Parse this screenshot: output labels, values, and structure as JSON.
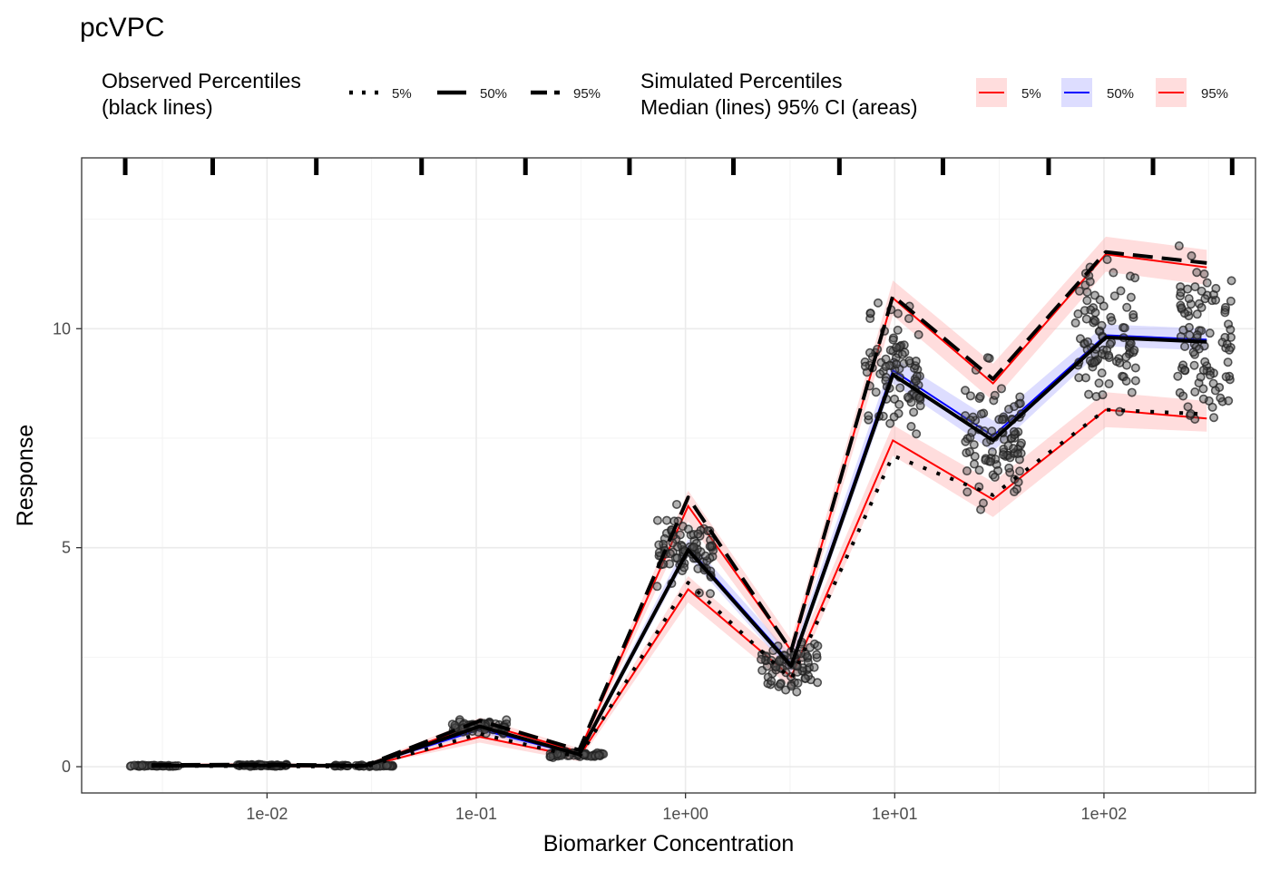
{
  "chart_data": {
    "type": "line",
    "title": "pcVPC",
    "xlabel": "Biomarker Concentration",
    "ylabel": "Response",
    "x_scale": "log10",
    "xlim": [
      0.0013,
      530
    ],
    "ylim": [
      -0.6,
      13.9
    ],
    "grid": true,
    "legend_position": "top",
    "x_ticks": [
      0.01,
      0.1,
      1,
      10,
      100
    ],
    "x_tick_labels": [
      "1e-02",
      "1e-01",
      "1e+00",
      "1e+01",
      "1e+02"
    ],
    "y_ticks": [
      0,
      5,
      10
    ],
    "y_tick_labels": [
      "0",
      "5",
      "10"
    ],
    "bin_edges": [
      0.0021,
      0.0055,
      0.0172,
      0.0548,
      0.1718,
      0.54,
      1.695,
      5.44,
      17.0,
      54.4,
      171.6,
      410
    ],
    "bins_x": [
      0.0028,
      0.0095,
      0.0295,
      0.104,
      0.31,
      1.03,
      3.2,
      9.8,
      29.5,
      102,
      310
    ],
    "legend": {
      "observed_title_line1": "Observed Percentiles",
      "observed_title_line2": "(black lines)",
      "observed_keys": [
        "5%",
        "50%",
        "95%"
      ],
      "simulated_title_line1": "Simulated Percentiles",
      "simulated_title_line2": "Median (lines) 95% CI (areas)",
      "simulated_keys": [
        "5%",
        "50%",
        "95%"
      ]
    },
    "colors": {
      "observed": "#000000",
      "sim_outer_line": "#ff0000",
      "sim_median_line": "#0000ff",
      "sim_outer_band": "#ffb3b3",
      "sim_median_band": "#b3b3ff",
      "points": "#555555"
    },
    "series": [
      {
        "name": "5%",
        "group": "observed",
        "y": [
          0.02,
          0.01,
          0.0,
          0.75,
          0.22,
          4.2,
          2.0,
          7.1,
          6.2,
          8.15,
          8.05
        ]
      },
      {
        "name": "50%",
        "group": "observed",
        "y": [
          0.02,
          0.03,
          0.02,
          0.92,
          0.28,
          4.95,
          2.3,
          8.95,
          7.45,
          9.8,
          9.7
        ]
      },
      {
        "name": "95%",
        "group": "observed",
        "y": [
          0.04,
          0.05,
          0.03,
          1.05,
          0.38,
          6.15,
          2.65,
          10.75,
          8.85,
          11.75,
          11.5
        ]
      },
      {
        "name": "5%",
        "group": "simulated",
        "y": [
          0.02,
          0.01,
          0.0,
          0.68,
          0.22,
          4.05,
          2.05,
          7.45,
          6.1,
          8.15,
          7.95
        ],
        "ci_low": [
          0.0,
          0.0,
          0.0,
          0.55,
          0.12,
          3.75,
          1.8,
          7.1,
          5.7,
          7.75,
          7.65
        ],
        "ci_high": [
          0.05,
          0.05,
          0.05,
          0.8,
          0.3,
          4.35,
          2.3,
          7.8,
          6.5,
          8.55,
          8.35
        ]
      },
      {
        "name": "50%",
        "group": "simulated",
        "y": [
          0.03,
          0.03,
          0.02,
          0.85,
          0.27,
          5.0,
          2.35,
          9.05,
          7.55,
          9.85,
          9.75
        ],
        "ci_low": [
          0.01,
          0.01,
          0.0,
          0.78,
          0.2,
          4.8,
          2.15,
          8.75,
          7.2,
          9.6,
          9.5
        ],
        "ci_high": [
          0.05,
          0.05,
          0.04,
          0.92,
          0.34,
          5.2,
          2.55,
          9.35,
          7.9,
          10.1,
          10.0
        ]
      },
      {
        "name": "95%",
        "group": "simulated",
        "y": [
          0.04,
          0.05,
          0.03,
          1.0,
          0.34,
          5.95,
          2.65,
          10.7,
          8.75,
          11.7,
          11.4
        ],
        "ci_low": [
          0.02,
          0.02,
          0.01,
          0.88,
          0.25,
          5.6,
          2.4,
          10.3,
          8.35,
          11.3,
          11.0
        ],
        "ci_high": [
          0.07,
          0.08,
          0.06,
          1.12,
          0.42,
          6.3,
          2.9,
          11.1,
          9.2,
          12.1,
          11.8
        ]
      }
    ],
    "observations": {
      "description_bins": [
        {
          "x_range": [
            0.0021,
            0.0038
          ],
          "y_range": [
            0.0,
            0.05
          ],
          "n": 45
        },
        {
          "x_range": [
            0.0072,
            0.0125
          ],
          "y_range": [
            0.0,
            0.07
          ],
          "n": 55
        },
        {
          "x_range": [
            0.021,
            0.04
          ],
          "y_range": [
            -0.01,
            0.05
          ],
          "n": 45
        },
        {
          "x_range": [
            0.076,
            0.142
          ],
          "y_range": [
            0.7,
            1.2
          ],
          "n": 60
        },
        {
          "x_range": [
            0.225,
            0.41
          ],
          "y_range": [
            0.2,
            0.42
          ],
          "n": 55
        },
        {
          "x_range": [
            0.73,
            1.36
          ],
          "y_range": [
            3.8,
            6.5
          ],
          "n": 90
        },
        {
          "x_range": [
            2.3,
            4.3
          ],
          "y_range": [
            1.7,
            3.6
          ],
          "n": 75
        },
        {
          "x_range": [
            7.2,
            13.4
          ],
          "y_range": [
            7.0,
            11.6
          ],
          "n": 90
        },
        {
          "x_range": [
            21.5,
            41
          ],
          "y_range": [
            5.5,
            10.7
          ],
          "n": 95
        },
        {
          "x_range": [
            73,
            142
          ],
          "y_range": [
            7.8,
            12.8
          ],
          "n": 95
        },
        {
          "x_range": [
            225,
            410
          ],
          "y_range": [
            7.1,
            13.2
          ],
          "n": 95
        }
      ]
    }
  }
}
